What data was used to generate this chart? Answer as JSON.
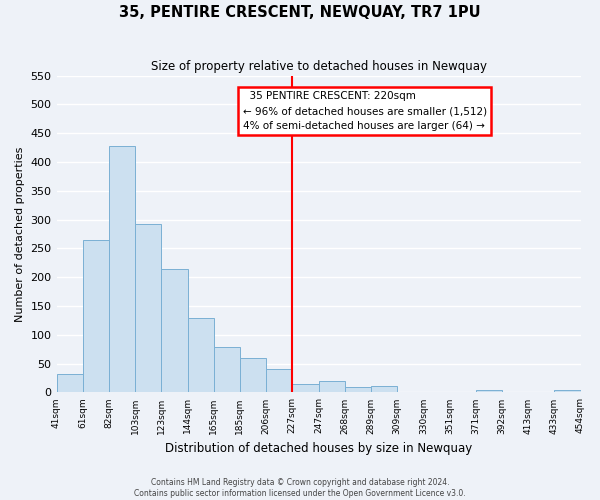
{
  "title": "35, PENTIRE CRESCENT, NEWQUAY, TR7 1PU",
  "subtitle": "Size of property relative to detached houses in Newquay",
  "xlabel": "Distribution of detached houses by size in Newquay",
  "ylabel": "Number of detached properties",
  "bin_labels": [
    "41sqm",
    "61sqm",
    "82sqm",
    "103sqm",
    "123sqm",
    "144sqm",
    "165sqm",
    "185sqm",
    "206sqm",
    "227sqm",
    "247sqm",
    "268sqm",
    "289sqm",
    "309sqm",
    "330sqm",
    "351sqm",
    "371sqm",
    "392sqm",
    "413sqm",
    "433sqm",
    "454sqm"
  ],
  "bar_heights": [
    32,
    265,
    428,
    293,
    215,
    130,
    78,
    59,
    40,
    14,
    20,
    9,
    12,
    0,
    0,
    0,
    5,
    0,
    0,
    4
  ],
  "bar_color": "#cce0f0",
  "bar_edge_color": "#7ab0d4",
  "vline_x": 9.0,
  "vline_color": "red",
  "ylim": [
    0,
    550
  ],
  "yticks": [
    0,
    50,
    100,
    150,
    200,
    250,
    300,
    350,
    400,
    450,
    500,
    550
  ],
  "annotation_title": "35 PENTIRE CRESCENT: 220sqm",
  "annotation_line1": "← 96% of detached houses are smaller (1,512)",
  "annotation_line2": "4% of semi-detached houses are larger (64) →",
  "annotation_box_color": "white",
  "annotation_box_edge": "red",
  "footer_line1": "Contains HM Land Registry data © Crown copyright and database right 2024.",
  "footer_line2": "Contains public sector information licensed under the Open Government Licence v3.0.",
  "background_color": "#eef2f8",
  "grid_color": "white"
}
